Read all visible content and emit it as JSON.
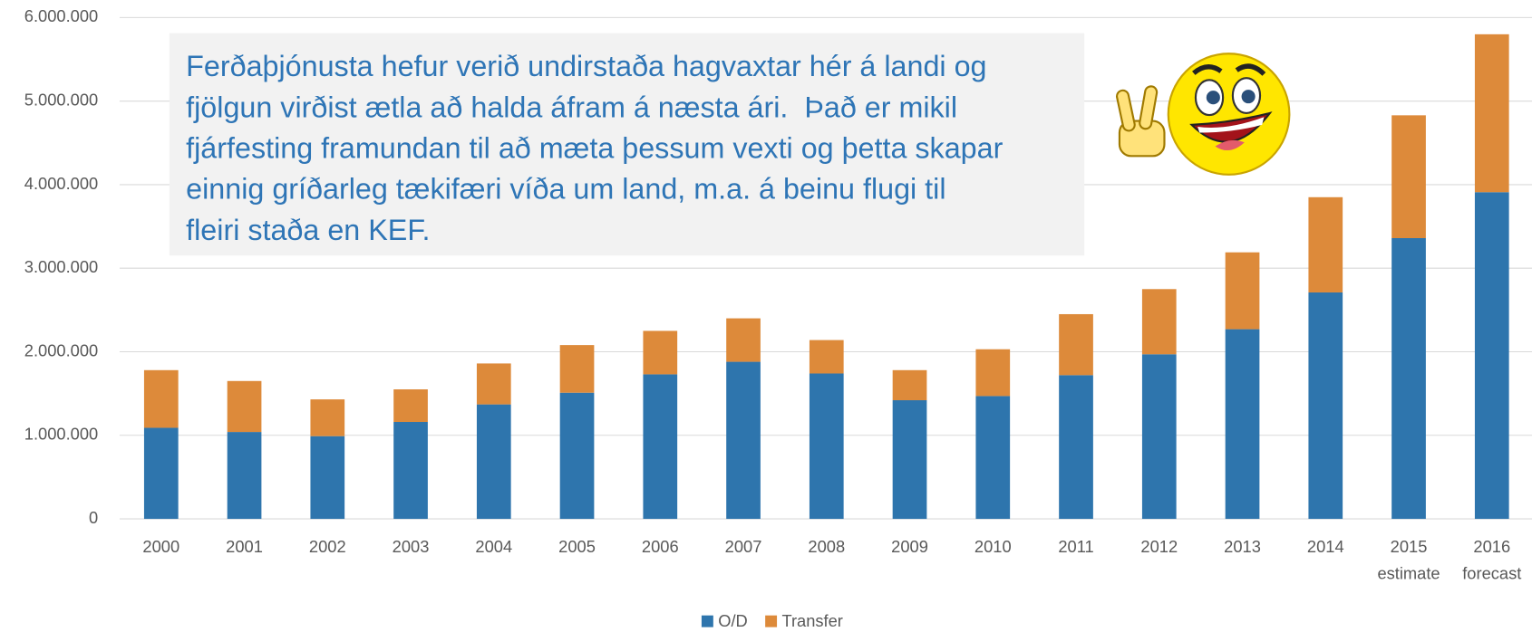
{
  "chart_data": {
    "type": "stacked_bar",
    "categories": [
      "2000",
      "2001",
      "2002",
      "2003",
      "2004",
      "2005",
      "2006",
      "2007",
      "2008",
      "2009",
      "2010",
      "2011",
      "2012",
      "2013",
      "2014",
      "2015",
      "2016"
    ],
    "x_sublabels": [
      null,
      null,
      null,
      null,
      null,
      null,
      null,
      null,
      null,
      null,
      null,
      null,
      null,
      null,
      null,
      "estimate",
      "forecast"
    ],
    "series": [
      {
        "name": "O/D",
        "color": "#2e75ad",
        "values": [
          1090000,
          1040000,
          990000,
          1160000,
          1370000,
          1510000,
          1730000,
          1880000,
          1740000,
          1420000,
          1470000,
          1720000,
          1970000,
          2270000,
          2710000,
          3360000,
          3910000
        ]
      },
      {
        "name": "Transfer",
        "color": "#dd8a3a",
        "values": [
          690000,
          610000,
          440000,
          390000,
          490000,
          570000,
          520000,
          520000,
          400000,
          360000,
          560000,
          730000,
          780000,
          920000,
          1140000,
          1470000,
          1890000
        ]
      }
    ],
    "ylim": [
      0,
      6000000
    ],
    "yticks": [
      0,
      {
        "value": 1000000,
        "label": "1.000.000"
      },
      {
        "value": 2000000,
        "label": "2.000.000"
      },
      {
        "value": 3000000,
        "label": "3.000.000"
      },
      {
        "value": 4000000,
        "label": "4.000.000"
      },
      {
        "value": 5000000,
        "label": "5.000.000"
      },
      {
        "value": 6000000,
        "label": "6.000.000"
      }
    ],
    "grid": true,
    "legend": "bottom",
    "annotation": {
      "lines": [
        "Ferðaþjónusta hefur verið undirstaða hagvaxtar hér á landi og",
        "fjölgun virðist ætla að halda áfram á næsta ári.  Það er mikil",
        "fjárfesting framundan til að mæta þessum vexti og þetta skapar",
        "einnig gríðarleg tækifæri víða um land, m.a. á beinu flugi til",
        "fleiri staða en KEF."
      ]
    }
  }
}
